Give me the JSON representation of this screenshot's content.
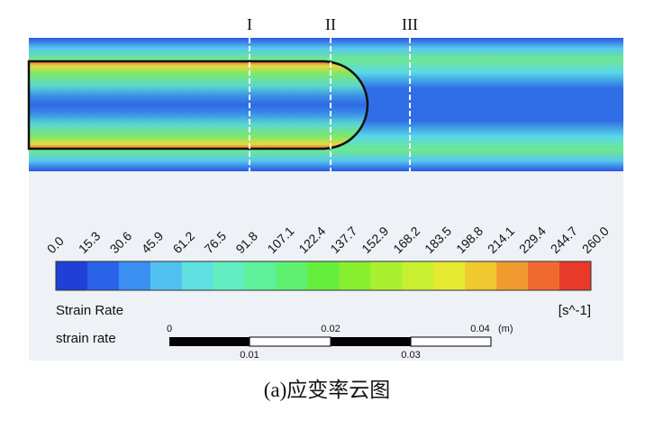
{
  "section_labels": [
    "I",
    "II",
    "III"
  ],
  "colorbar": {
    "ticks": [
      "0.0",
      "15.3",
      "30.6",
      "45.9",
      "61.2",
      "76.5",
      "91.8",
      "107.1",
      "122.4",
      "137.7",
      "152.9",
      "168.2",
      "183.5",
      "198.8",
      "214.1",
      "229.4",
      "244.7",
      "260.0"
    ],
    "title": "Strain Rate",
    "unit": "[s^-1]"
  },
  "scale_bar": {
    "title": "strain rate",
    "top_labels": [
      "0",
      "0.02",
      "0.04"
    ],
    "unit": "(m)",
    "bottom_labels": [
      "0.01",
      "0.03"
    ]
  },
  "caption": "(a)应变率云图"
}
